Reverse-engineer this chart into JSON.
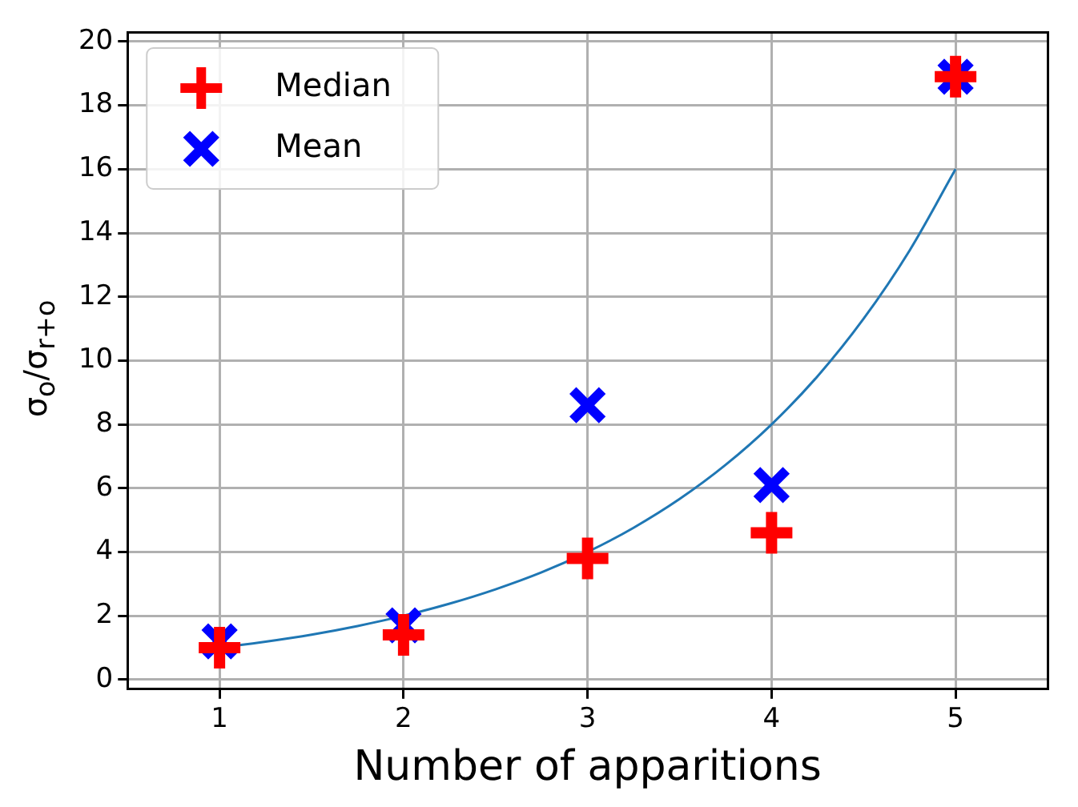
{
  "chart_data": {
    "type": "scatter",
    "xlabel": "Number of apparitions",
    "ylabel": "σ$_{o}$/σ$_{r+o}$",
    "xlim": [
      0.5,
      5.5
    ],
    "xticks": [
      1,
      2,
      3,
      4,
      5
    ],
    "ylim": [
      -0.3,
      20.3
    ],
    "yticks": [
      0,
      2,
      4,
      6,
      8,
      10,
      12,
      14,
      16,
      18,
      20
    ],
    "grid": true,
    "legend": "top left",
    "series": [
      {
        "name": "Median",
        "type": "scatter",
        "marker": "cross",
        "color": "#ff0000",
        "x": [
          1,
          2,
          3,
          4,
          5
        ],
        "values": [
          1.0,
          1.4,
          3.8,
          4.6,
          18.9
        ]
      },
      {
        "name": "Mean",
        "type": "scatter",
        "marker": "x",
        "color": "#0000ff",
        "x": [
          1,
          2,
          3,
          4,
          5
        ],
        "values": [
          1.2,
          1.7,
          8.6,
          6.1,
          18.9
        ]
      },
      {
        "type": "line",
        "marker": "none",
        "color": "#1f77b4",
        "x": [
          1,
          1.25,
          1.5,
          1.75,
          2,
          2.25,
          2.5,
          2.75,
          3,
          3.25,
          3.5,
          3.75,
          4,
          4.25,
          4.5,
          4.75,
          5
        ],
        "values": [
          1,
          1.19,
          1.41,
          1.68,
          2,
          2.38,
          2.83,
          3.36,
          4,
          4.76,
          5.66,
          6.73,
          8,
          9.51,
          11.31,
          13.45,
          16
        ]
      }
    ]
  }
}
